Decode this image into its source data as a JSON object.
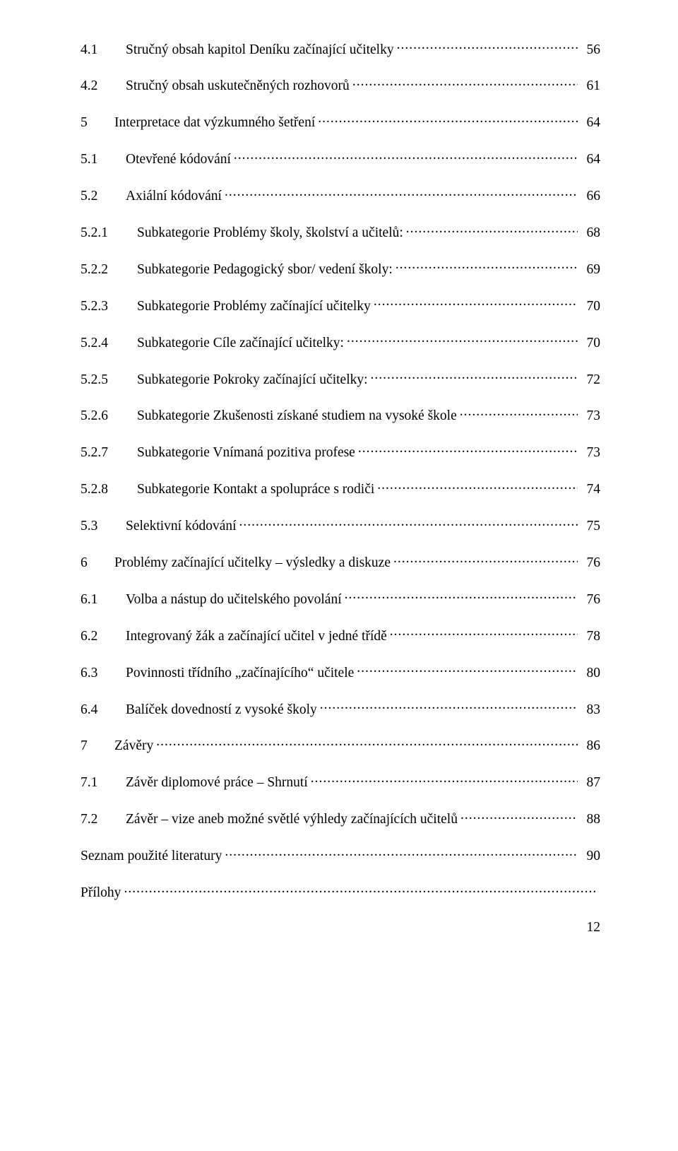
{
  "page_number": "12",
  "entries": [
    {
      "level": 2,
      "num": "4.1",
      "text": "Stručný obsah kapitol Deníku začínající učitelky",
      "page": "56"
    },
    {
      "level": 2,
      "num": "4.2",
      "text": "Stručný obsah uskutečněných rozhovorů",
      "page": "61"
    },
    {
      "level": 1,
      "num": "5",
      "text": "Interpretace dat výzkumného šetření",
      "page": "64"
    },
    {
      "level": 2,
      "num": "5.1",
      "text": "Otevřené kódování",
      "page": "64"
    },
    {
      "level": 2,
      "num": "5.2",
      "text": "Axiální kódování",
      "page": "66"
    },
    {
      "level": 3,
      "num": "5.2.1",
      "text": "Subkategorie Problémy školy, školství a učitelů:",
      "page": "68"
    },
    {
      "level": 3,
      "num": "5.2.2",
      "text": "Subkategorie Pedagogický sbor/ vedení školy:",
      "page": "69"
    },
    {
      "level": 3,
      "num": "5.2.3",
      "text": "Subkategorie Problémy začínající učitelky",
      "page": "70"
    },
    {
      "level": 3,
      "num": "5.2.4",
      "text": "Subkategorie Cíle začínající učitelky:",
      "page": "70"
    },
    {
      "level": 3,
      "num": "5.2.5",
      "text": "Subkategorie Pokroky začínající učitelky:",
      "page": "72"
    },
    {
      "level": 3,
      "num": "5.2.6",
      "text": "Subkategorie Zkušenosti získané studiem na vysoké škole",
      "page": "73"
    },
    {
      "level": 3,
      "num": "5.2.7",
      "text": "Subkategorie Vnímaná pozitiva profese",
      "page": "73"
    },
    {
      "level": 3,
      "num": "5.2.8",
      "text": "Subkategorie Kontakt a spolupráce s rodiči",
      "page": "74"
    },
    {
      "level": 2,
      "num": "5.3",
      "text": "Selektivní kódování",
      "page": "75"
    },
    {
      "level": 1,
      "num": "6",
      "text": "Problémy začínající učitelky – výsledky a diskuze",
      "page": "76"
    },
    {
      "level": 2,
      "num": "6.1",
      "text": "Volba a nástup do učitelského povolání",
      "page": "76"
    },
    {
      "level": 2,
      "num": "6.2",
      "text": "Integrovaný žák a začínající učitel v jedné třídě",
      "page": "78"
    },
    {
      "level": 2,
      "num": "6.3",
      "text": "Povinnosti třídního „začínajícího“ učitele",
      "page": "80"
    },
    {
      "level": 2,
      "num": "6.4",
      "text": "Balíček dovedností z vysoké školy",
      "page": "83"
    },
    {
      "level": 1,
      "num": "7",
      "text": "Závěry",
      "page": "86"
    },
    {
      "level": 2,
      "num": "7.1",
      "text": "Závěr diplomové práce – Shrnutí",
      "page": "87"
    },
    {
      "level": 2,
      "num": "7.2",
      "text": "Závěr – vize aneb možné světlé výhledy začínajících učitelů",
      "page": "88"
    },
    {
      "level": 0,
      "num": "",
      "text": "Seznam použité literatury",
      "page": "90"
    },
    {
      "level": 0,
      "num": "",
      "text": "Přílohy",
      "page": "."
    }
  ]
}
